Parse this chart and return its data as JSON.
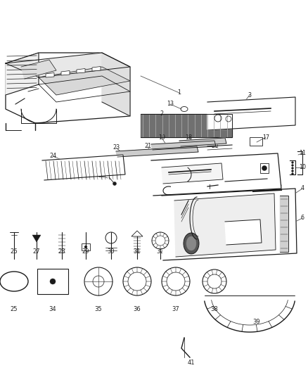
{
  "bg_color": "#ffffff",
  "fig_width": 4.38,
  "fig_height": 5.33,
  "dpi": 100,
  "part_color": "#1a1a1a",
  "label_color": "#222222",
  "line_color": "#555555"
}
